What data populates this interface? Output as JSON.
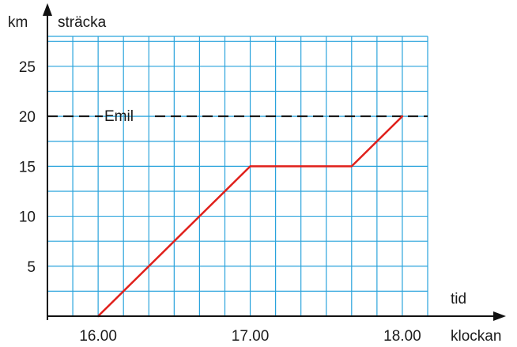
{
  "chart_data": {
    "type": "line",
    "xlabel": "tid",
    "xlabel_secondary": "klockan",
    "ylabel": "sträcka",
    "yunit": "km",
    "x_tick_labels": [
      "16.00",
      "17.00",
      "18.00"
    ],
    "x_tick_values": [
      0,
      60,
      120
    ],
    "y_tick_labels": [
      "5",
      "10",
      "15",
      "20",
      "25"
    ],
    "y_tick_values": [
      5,
      10,
      15,
      20,
      25
    ],
    "xlim": [
      -20,
      130
    ],
    "ylim": [
      0,
      28
    ],
    "grid": true,
    "series": [
      {
        "points": [
          {
            "x": 0,
            "y": 0
          },
          {
            "x": 60,
            "y": 15
          },
          {
            "x": 100,
            "y": 15
          },
          {
            "x": 120,
            "y": 20
          }
        ],
        "color": "#e0201b"
      }
    ],
    "reference_lines": [
      {
        "y": 20,
        "label": "Emil",
        "style": "dashed",
        "color": "#111111"
      }
    ],
    "grid_color": "#29a3dc"
  }
}
